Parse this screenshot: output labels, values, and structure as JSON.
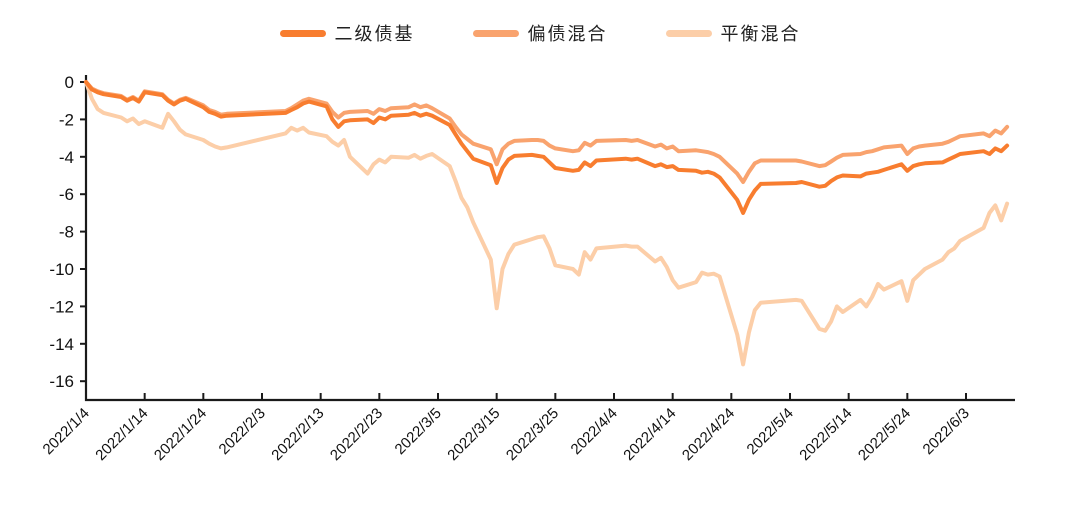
{
  "legend": {
    "items": [
      {
        "label": "二级债基",
        "color": "#f87d2f"
      },
      {
        "label": "偏债混合",
        "color": "#f9a36e"
      },
      {
        "label": "平衡混合",
        "color": "#fccea8"
      }
    ]
  },
  "axis_colors": {
    "axis": "#1a1a1a",
    "tick_text": "#111111"
  },
  "chart_data": {
    "type": "line",
    "title": "",
    "xlabel": "",
    "ylabel": "",
    "grid": false,
    "legend_position": "top-center",
    "x_axis_type": "date",
    "x_range": [
      "2022/1/4",
      "2022/6/10"
    ],
    "ylim": [
      -17,
      0
    ],
    "yticks": [
      0,
      -2,
      -4,
      -6,
      -8,
      -10,
      -12,
      -14,
      -16
    ],
    "ytick_labels": [
      "0",
      "-2",
      "-4",
      "-6",
      "-8",
      "-10",
      "-12",
      "-14",
      "-16"
    ],
    "xtick_labels": [
      "2022/1/4",
      "2022/1/14",
      "2022/1/24",
      "2022/2/3",
      "2022/2/13",
      "2022/2/23",
      "2022/3/5",
      "2022/3/15",
      "2022/3/25",
      "2022/4/4",
      "2022/4/14",
      "2022/4/24",
      "2022/5/4",
      "2022/5/14",
      "2022/5/24",
      "2022/6/3"
    ],
    "x": [
      "2022/1/4",
      "2022/1/5",
      "2022/1/6",
      "2022/1/7",
      "2022/1/10",
      "2022/1/11",
      "2022/1/12",
      "2022/1/13",
      "2022/1/14",
      "2022/1/17",
      "2022/1/18",
      "2022/1/19",
      "2022/1/20",
      "2022/1/21",
      "2022/1/24",
      "2022/1/25",
      "2022/1/26",
      "2022/1/27",
      "2022/1/28",
      "2022/2/7",
      "2022/2/8",
      "2022/2/9",
      "2022/2/10",
      "2022/2/11",
      "2022/2/14",
      "2022/2/15",
      "2022/2/16",
      "2022/2/17",
      "2022/2/18",
      "2022/2/21",
      "2022/2/22",
      "2022/2/23",
      "2022/2/24",
      "2022/2/25",
      "2022/2/28",
      "2022/3/1",
      "2022/3/2",
      "2022/3/3",
      "2022/3/4",
      "2022/3/7",
      "2022/3/8",
      "2022/3/9",
      "2022/3/10",
      "2022/3/11",
      "2022/3/14",
      "2022/3/15",
      "2022/3/16",
      "2022/3/17",
      "2022/3/18",
      "2022/3/21",
      "2022/3/22",
      "2022/3/23",
      "2022/3/24",
      "2022/3/25",
      "2022/3/28",
      "2022/3/29",
      "2022/3/30",
      "2022/3/31",
      "2022/4/1",
      "2022/4/6",
      "2022/4/7",
      "2022/4/8",
      "2022/4/11",
      "2022/4/12",
      "2022/4/13",
      "2022/4/14",
      "2022/4/15",
      "2022/4/18",
      "2022/4/19",
      "2022/4/20",
      "2022/4/21",
      "2022/4/22",
      "2022/4/25",
      "2022/4/26",
      "2022/4/27",
      "2022/4/28",
      "2022/4/29",
      "2022/5/5",
      "2022/5/6",
      "2022/5/9",
      "2022/5/10",
      "2022/5/11",
      "2022/5/12",
      "2022/5/13",
      "2022/5/16",
      "2022/5/17",
      "2022/5/18",
      "2022/5/19",
      "2022/5/20",
      "2022/5/23",
      "2022/5/24",
      "2022/5/25",
      "2022/5/26",
      "2022/5/27",
      "2022/5/30",
      "2022/5/31",
      "2022/6/1",
      "2022/6/2",
      "2022/6/6",
      "2022/6/7",
      "2022/6/8",
      "2022/6/9",
      "2022/6/10"
    ],
    "series": [
      {
        "name": "二级债基",
        "color": "#f87d2f",
        "values": [
          0,
          -0.4,
          -0.55,
          -0.65,
          -0.8,
          -1.0,
          -0.85,
          -1.05,
          -0.55,
          -0.7,
          -1.0,
          -1.2,
          -1.0,
          -0.9,
          -1.35,
          -1.6,
          -1.7,
          -1.85,
          -1.8,
          -1.65,
          -1.5,
          -1.35,
          -1.15,
          -1.05,
          -1.3,
          -2.0,
          -2.4,
          -2.1,
          -2.05,
          -2.0,
          -2.2,
          -1.9,
          -2.0,
          -1.8,
          -1.75,
          -1.65,
          -1.8,
          -1.7,
          -1.8,
          -2.3,
          -2.8,
          -3.3,
          -3.7,
          -4.1,
          -4.45,
          -5.4,
          -4.6,
          -4.15,
          -3.95,
          -3.9,
          -3.95,
          -4.0,
          -4.3,
          -4.6,
          -4.75,
          -4.7,
          -4.3,
          -4.5,
          -4.2,
          -4.1,
          -4.15,
          -4.1,
          -4.5,
          -4.4,
          -4.55,
          -4.5,
          -4.7,
          -4.75,
          -4.85,
          -4.8,
          -4.9,
          -5.1,
          -6.3,
          -7.0,
          -6.3,
          -5.8,
          -5.45,
          -5.4,
          -5.35,
          -5.6,
          -5.55,
          -5.3,
          -5.1,
          -5.0,
          -5.05,
          -4.9,
          -4.85,
          -4.8,
          -4.7,
          -4.4,
          -4.75,
          -4.5,
          -4.4,
          -4.35,
          -4.3,
          -4.15,
          -4.0,
          -3.85,
          -3.7,
          -3.85,
          -3.55,
          -3.7,
          -3.4
        ]
      },
      {
        "name": "偏债混合",
        "color": "#f9a36e",
        "values": [
          0,
          -0.35,
          -0.5,
          -0.6,
          -0.75,
          -0.95,
          -0.8,
          -1.0,
          -0.5,
          -0.65,
          -0.95,
          -1.15,
          -0.95,
          -0.85,
          -1.25,
          -1.5,
          -1.6,
          -1.75,
          -1.7,
          -1.55,
          -1.4,
          -1.2,
          -1.0,
          -0.9,
          -1.15,
          -1.6,
          -1.9,
          -1.65,
          -1.6,
          -1.55,
          -1.7,
          -1.45,
          -1.55,
          -1.4,
          -1.35,
          -1.2,
          -1.35,
          -1.25,
          -1.4,
          -1.95,
          -2.4,
          -2.8,
          -3.05,
          -3.3,
          -3.6,
          -4.4,
          -3.6,
          -3.3,
          -3.15,
          -3.1,
          -3.1,
          -3.15,
          -3.4,
          -3.55,
          -3.7,
          -3.65,
          -3.25,
          -3.4,
          -3.15,
          -3.1,
          -3.15,
          -3.1,
          -3.45,
          -3.35,
          -3.55,
          -3.45,
          -3.7,
          -3.65,
          -3.7,
          -3.75,
          -3.85,
          -4.0,
          -4.9,
          -5.35,
          -4.8,
          -4.35,
          -4.2,
          -4.2,
          -4.25,
          -4.5,
          -4.45,
          -4.25,
          -4.05,
          -3.9,
          -3.85,
          -3.75,
          -3.7,
          -3.6,
          -3.5,
          -3.4,
          -3.85,
          -3.55,
          -3.45,
          -3.4,
          -3.3,
          -3.2,
          -3.05,
          -2.9,
          -2.75,
          -2.9,
          -2.6,
          -2.75,
          -2.4
        ]
      },
      {
        "name": "平衡混合",
        "color": "#fccea8",
        "values": [
          0,
          -0.9,
          -1.45,
          -1.65,
          -1.9,
          -2.1,
          -1.95,
          -2.25,
          -2.1,
          -2.45,
          -1.7,
          -2.1,
          -2.55,
          -2.8,
          -3.1,
          -3.3,
          -3.45,
          -3.55,
          -3.5,
          -2.75,
          -2.45,
          -2.6,
          -2.45,
          -2.7,
          -2.9,
          -3.2,
          -3.4,
          -3.1,
          -4.0,
          -4.9,
          -4.4,
          -4.15,
          -4.3,
          -4.0,
          -4.05,
          -3.9,
          -4.1,
          -3.95,
          -3.85,
          -4.5,
          -5.3,
          -6.2,
          -6.7,
          -7.5,
          -9.5,
          -12.1,
          -10.0,
          -9.2,
          -8.7,
          -8.4,
          -8.3,
          -8.25,
          -8.9,
          -9.8,
          -10.0,
          -10.3,
          -9.1,
          -9.5,
          -8.9,
          -8.75,
          -8.8,
          -8.8,
          -9.6,
          -9.4,
          -9.9,
          -10.6,
          -11.0,
          -10.7,
          -10.2,
          -10.3,
          -10.25,
          -10.4,
          -13.5,
          -15.1,
          -13.4,
          -12.2,
          -11.8,
          -11.65,
          -11.7,
          -13.2,
          -13.3,
          -12.8,
          -12.0,
          -12.3,
          -11.65,
          -12.0,
          -11.5,
          -10.8,
          -11.1,
          -10.65,
          -11.7,
          -10.6,
          -10.3,
          -10.0,
          -9.5,
          -9.1,
          -8.9,
          -8.5,
          -7.8,
          -7.0,
          -6.6,
          -7.4,
          -6.5
        ]
      }
    ]
  }
}
